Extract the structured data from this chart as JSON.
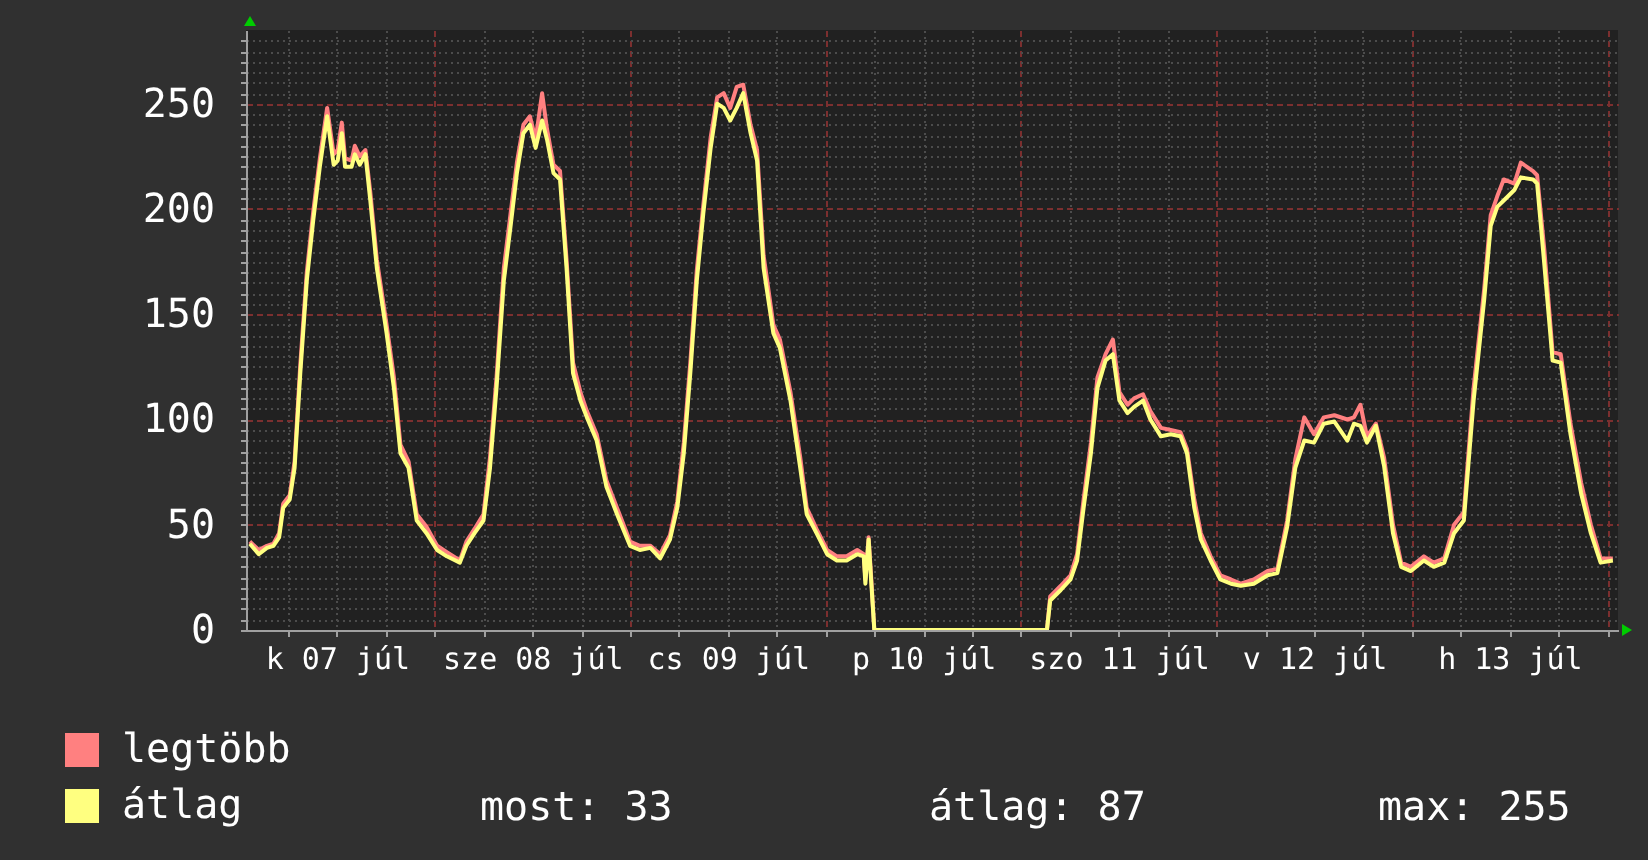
{
  "chart_data": {
    "type": "line",
    "x": [
      "--07-07T01:18",
      "--07-07T02:24",
      "--07-07T03:24",
      "--07-07T04:12",
      "--07-07T04:54",
      "--07-07T05:24",
      "--07-07T06:12",
      "--07-07T06:48",
      "--07-07T07:30",
      "--07-07T08:18",
      "--07-07T09:06",
      "--07-07T09:54",
      "--07-07T10:48",
      "--07-07T11:36",
      "--07-07T12:06",
      "--07-07T12:36",
      "--07-07T13:00",
      "--07-07T13:48",
      "--07-07T14:12",
      "--07-07T14:48",
      "--07-07T15:30",
      "--07-07T16:06",
      "--07-07T16:54",
      "--07-07T18:06",
      "--07-07T19:00",
      "--07-07T19:48",
      "--07-07T20:48",
      "--07-07T21:48",
      "--07-07T23:00",
      "--07-08T00:18",
      "--07-08T01:30",
      "--07-08T03:06",
      "--07-08T03:54",
      "--07-08T04:54",
      "--07-08T06:00",
      "--07-08T06:48",
      "--07-08T07:36",
      "--07-08T08:30",
      "--07-08T09:18",
      "--07-08T10:06",
      "--07-08T10:54",
      "--07-08T11:42",
      "--07-08T12:24",
      "--07-08T13:12",
      "--07-08T13:48",
      "--07-08T14:36",
      "--07-08T15:24",
      "--07-08T16:12",
      "--07-08T17:00",
      "--07-08T17:54",
      "--07-08T18:42",
      "--07-08T19:54",
      "--07-08T21:06",
      "--07-08T22:24",
      "--07-09T00:00",
      "--07-09T01:12",
      "--07-09T02:30",
      "--07-09T03:42",
      "--07-09T04:54",
      "--07-09T05:48",
      "--07-09T06:36",
      "--07-09T07:24",
      "--07-09T08:12",
      "--07-09T09:00",
      "--07-09T09:54",
      "--07-09T10:42",
      "--07-09T11:30",
      "--07-09T12:18",
      "--07-09T13:06",
      "--07-09T13:54",
      "--07-09T14:48",
      "--07-09T15:36",
      "--07-09T16:24",
      "--07-09T17:36",
      "--07-09T18:24",
      "--07-09T19:42",
      "--07-09T20:54",
      "--07-09T21:42",
      "--07-09T22:54",
      "--07-10T00:12",
      "--07-10T01:24",
      "--07-10T02:36",
      "--07-10T03:54",
      "--07-10T04:42",
      "--07-10T04:54",
      "--07-10T05:18",
      "--07-10T05:36",
      "--07-10T06:00",
      "--07-11T03:12",
      "--07-11T03:36",
      "--07-11T04:54",
      "--07-11T06:06",
      "--07-11T06:54",
      "--07-11T07:42",
      "--07-11T08:36",
      "--07-11T09:24",
      "--07-11T10:24",
      "--07-11T11:18",
      "--07-11T12:06",
      "--07-11T13:06",
      "--07-11T13:54",
      "--07-11T15:00",
      "--07-11T15:54",
      "--07-11T17:12",
      "--07-11T18:24",
      "--07-11T19:36",
      "--07-11T20:24",
      "--07-11T21:18",
      "--07-11T22:06",
      "--07-11T23:18",
      "--07-12T00:30",
      "--07-12T01:48",
      "--07-12T03:00",
      "--07-12T04:36",
      "--07-12T06:18",
      "--07-12T07:30",
      "--07-12T08:42",
      "--07-12T09:42",
      "--07-12T10:48",
      "--07-12T12:00",
      "--07-12T13:12",
      "--07-12T14:30",
      "--07-12T16:06",
      "--07-12T16:54",
      "--07-12T17:42",
      "--07-12T18:30",
      "--07-12T19:36",
      "--07-12T20:36",
      "--07-12T21:42",
      "--07-12T22:42",
      "--07-12T23:54",
      "--07-13T01:30",
      "--07-13T02:42",
      "--07-13T04:00",
      "--07-13T05:12",
      "--07-13T06:24",
      "--07-13T07:36",
      "--07-13T08:54",
      "--07-13T09:42",
      "--07-13T10:30",
      "--07-13T11:18",
      "--07-13T12:36",
      "--07-13T13:24",
      "--07-13T14:54",
      "--07-13T15:24",
      "--07-13T16:18",
      "--07-13T17:18",
      "--07-13T18:18",
      "--07-13T19:30",
      "--07-13T20:48",
      "--07-13T22:00",
      "--07-13T23:12",
      "--07-14T00:42"
    ],
    "series": [
      {
        "name": "legtöbb",
        "color": "#ff8080",
        "values": [
          42,
          38,
          40,
          41,
          46,
          60,
          64,
          80,
          126,
          170,
          199,
          224,
          248,
          226,
          228,
          241,
          224,
          223,
          230,
          225,
          228,
          208,
          176,
          145,
          120,
          88,
          80,
          55,
          49,
          40,
          37,
          33,
          42,
          48,
          55,
          82,
          120,
          172,
          197,
          222,
          240,
          244,
          233,
          255,
          238,
          221,
          218,
          176,
          127,
          113,
          104,
          93,
          71,
          58,
          42,
          40,
          40,
          36,
          45,
          61,
          89,
          127,
          171,
          202,
          234,
          253,
          255,
          248,
          258,
          259,
          240,
          228,
          178,
          145,
          138,
          113,
          82,
          58,
          48,
          38,
          35,
          35,
          38,
          36,
          24,
          44,
          26,
          0,
          0,
          16,
          21,
          26,
          36,
          62,
          89,
          120,
          131,
          138,
          113,
          107,
          110,
          112,
          104,
          96,
          95,
          94,
          86,
          62,
          46,
          35,
          26,
          24,
          22,
          24,
          28,
          29,
          52,
          81,
          101,
          93,
          101,
          102,
          100,
          101,
          107,
          92,
          98,
          82,
          50,
          32,
          30,
          35,
          32,
          34,
          50,
          56,
          115,
          162,
          197,
          206,
          214,
          212,
          222,
          218,
          216,
          180,
          132,
          131,
          98,
          70,
          50,
          34,
          34
        ]
      },
      {
        "name": "átlag",
        "color": "#ffff80",
        "values": [
          41,
          36,
          39,
          40,
          44,
          58,
          62,
          77,
          122,
          166,
          195,
          220,
          244,
          221,
          223,
          236,
          220,
          220,
          226,
          221,
          226,
          204,
          172,
          141,
          115,
          84,
          77,
          52,
          46,
          38,
          35,
          32,
          40,
          46,
          52,
          77,
          115,
          166,
          191,
          217,
          236,
          240,
          229,
          242,
          233,
          217,
          214,
          172,
          122,
          109,
          101,
          90,
          68,
          55,
          40,
          38,
          39,
          34,
          43,
          58,
          84,
          122,
          166,
          198,
          229,
          250,
          248,
          242,
          248,
          255,
          236,
          223,
          172,
          141,
          134,
          109,
          77,
          55,
          46,
          36,
          33,
          33,
          36,
          35,
          22,
          43,
          24,
          0,
          0,
          14,
          19,
          24,
          33,
          58,
          84,
          115,
          128,
          131,
          109,
          103,
          106,
          109,
          100,
          92,
          93,
          92,
          84,
          58,
          43,
          33,
          24,
          22,
          21,
          22,
          26,
          27,
          49,
          77,
          90,
          89,
          98,
          99,
          90,
          98,
          97,
          89,
          97,
          78,
          46,
          30,
          28,
          33,
          30,
          32,
          46,
          52,
          109,
          157,
          192,
          201,
          204,
          209,
          215,
          214,
          212,
          173,
          128,
          127,
          93,
          65,
          46,
          32,
          33
        ]
      }
    ],
    "xlim": [
      "--07-07T00:50",
      "--07-14T01:20"
    ],
    "xticks": [
      {
        "value": "--07-07T06:00",
        "label": null
      },
      {
        "value": "--07-07T12:00",
        "label": "k 07 júl"
      },
      {
        "value": "--07-07T18:00",
        "label": null
      },
      {
        "value": "--07-08T00:00",
        "label": null
      },
      {
        "value": "--07-08T06:00",
        "label": null
      },
      {
        "value": "--07-08T12:00",
        "label": "sze 08 júl"
      },
      {
        "value": "--07-08T18:00",
        "label": null
      },
      {
        "value": "--07-09T00:00",
        "label": null
      },
      {
        "value": "--07-09T06:00",
        "label": null
      },
      {
        "value": "--07-09T12:00",
        "label": "cs 09 júl"
      },
      {
        "value": "--07-09T18:00",
        "label": null
      },
      {
        "value": "--07-10T00:00",
        "label": null
      },
      {
        "value": "--07-10T06:00",
        "label": null
      },
      {
        "value": "--07-10T12:00",
        "label": "p 10 júl"
      },
      {
        "value": "--07-10T18:00",
        "label": null
      },
      {
        "value": "--07-11T00:00",
        "label": null
      },
      {
        "value": "--07-11T06:00",
        "label": null
      },
      {
        "value": "--07-11T12:00",
        "label": "szo 11 júl"
      },
      {
        "value": "--07-11T18:00",
        "label": null
      },
      {
        "value": "--07-12T00:00",
        "label": null
      },
      {
        "value": "--07-12T06:00",
        "label": null
      },
      {
        "value": "--07-12T12:00",
        "label": "v 12 júl"
      },
      {
        "value": "--07-12T18:00",
        "label": null
      },
      {
        "value": "--07-13T00:00",
        "label": null
      },
      {
        "value": "--07-13T06:00",
        "label": null
      },
      {
        "value": "--07-13T12:00",
        "label": "h 13 júl"
      },
      {
        "value": "--07-13T18:00",
        "label": null
      },
      {
        "value": "--07-14T00:00",
        "label": null
      }
    ],
    "ylim": [
      0,
      285
    ],
    "yticks": [
      0,
      {
        "value": 5,
        "label": null
      },
      {
        "value": 10,
        "label": null
      },
      {
        "value": 15,
        "label": null
      },
      {
        "value": 20,
        "label": null
      },
      {
        "value": 25,
        "label": null
      },
      {
        "value": 30,
        "label": null
      },
      {
        "value": 35,
        "label": null
      },
      {
        "value": 40,
        "label": null
      },
      {
        "value": 45,
        "label": null
      },
      50,
      {
        "value": 55,
        "label": null
      },
      {
        "value": 60,
        "label": null
      },
      {
        "value": 65,
        "label": null
      },
      {
        "value": 70,
        "label": null
      },
      {
        "value": 75,
        "label": null
      },
      {
        "value": 80,
        "label": null
      },
      {
        "value": 85,
        "label": null
      },
      {
        "value": 90,
        "label": null
      },
      {
        "value": 95,
        "label": null
      },
      100,
      {
        "value": 105,
        "label": null
      },
      {
        "value": 110,
        "label": null
      },
      {
        "value": 115,
        "label": null
      },
      {
        "value": 120,
        "label": null
      },
      {
        "value": 125,
        "label": null
      },
      {
        "value": 130,
        "label": null
      },
      {
        "value": 135,
        "label": null
      },
      {
        "value": 140,
        "label": null
      },
      {
        "value": 145,
        "label": null
      },
      150,
      {
        "value": 155,
        "label": null
      },
      {
        "value": 160,
        "label": null
      },
      {
        "value": 165,
        "label": null
      },
      {
        "value": 170,
        "label": null
      },
      {
        "value": 175,
        "label": null
      },
      {
        "value": 180,
        "label": null
      },
      {
        "value": 185,
        "label": null
      },
      {
        "value": 190,
        "label": null
      },
      {
        "value": 195,
        "label": null
      },
      200,
      {
        "value": 205,
        "label": null
      },
      {
        "value": 210,
        "label": null
      },
      {
        "value": 215,
        "label": null
      },
      {
        "value": 220,
        "label": null
      },
      {
        "value": 225,
        "label": null
      },
      {
        "value": 230,
        "label": null
      },
      {
        "value": 235,
        "label": null
      },
      {
        "value": 240,
        "label": null
      },
      {
        "value": 245,
        "label": null
      },
      250,
      {
        "value": 255,
        "label": null
      },
      {
        "value": 260,
        "label": null
      },
      {
        "value": 265,
        "label": null
      },
      {
        "value": 270,
        "label": null
      },
      {
        "value": 275,
        "label": null
      },
      {
        "value": 280,
        "label": null
      }
    ],
    "grid": true,
    "legend": "bottom left",
    "annotations": [
      "most: 33",
      "átlag: 87",
      "max: 255"
    ]
  }
}
